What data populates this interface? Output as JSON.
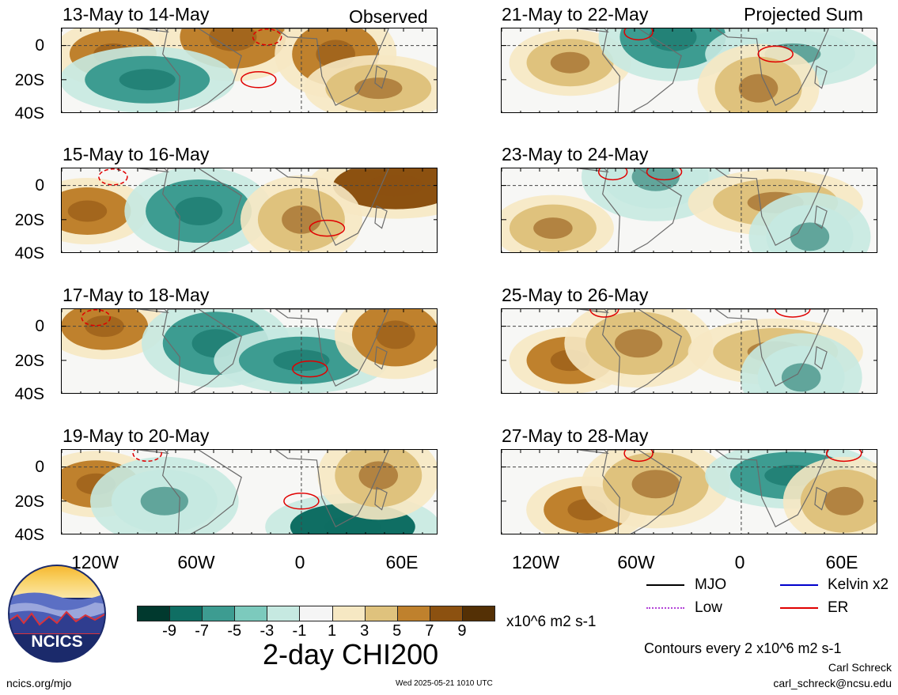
{
  "columns": {
    "left_label": "Observed",
    "right_label": "Projected Sum"
  },
  "panels": [
    {
      "title": "13-May to 14-May",
      "kind": "observed"
    },
    {
      "title": "21-May to 22-May",
      "kind": "projected"
    },
    {
      "title": "15-May to 16-May",
      "kind": "observed"
    },
    {
      "title": "23-May to 24-May",
      "kind": "projected"
    },
    {
      "title": "17-May to 18-May",
      "kind": "observed"
    },
    {
      "title": "25-May to 26-May",
      "kind": "projected"
    },
    {
      "title": "19-May to 20-May",
      "kind": "observed"
    },
    {
      "title": "27-May to 28-May",
      "kind": "projected"
    }
  ],
  "axes": {
    "lat_labels": [
      "0",
      "20S",
      "40S"
    ],
    "lon_labels": [
      "120W",
      "60W",
      "0",
      "60E"
    ]
  },
  "colorbar": {
    "colors": [
      "#01392e",
      "#0f6e63",
      "#3d9c91",
      "#7ccabd",
      "#c6e9e1",
      "#f5f5f5",
      "#f6e8c3",
      "#dfc27d",
      "#bf812d",
      "#8c5110",
      "#543005"
    ],
    "labels": [
      "-9",
      "-7",
      "-5",
      "-3",
      "-1",
      "1",
      "3",
      "5",
      "7",
      "9"
    ],
    "units": "x10^6 m2 s-1",
    "title": "2-day CHI200"
  },
  "legend": {
    "items": [
      {
        "label": "MJO",
        "color": "#000000",
        "style": "solid"
      },
      {
        "label": "Kelvin x2",
        "color": "#0000cc",
        "style": "solid"
      },
      {
        "label": "Low",
        "color": "#b344d8",
        "style": "dotted"
      },
      {
        "label": "ER",
        "color": "#e00000",
        "style": "solid"
      }
    ],
    "contour_note": "Contours every 2 x10^6 m2 s-1"
  },
  "logo": {
    "text": "NCICS"
  },
  "footer": {
    "url": "ncics.org/mjo",
    "timestamp": "Wed 2025-05-21 1010 UTC",
    "author": "Carl Schreck",
    "email": "carl_schreck@ncsu.edu"
  }
}
